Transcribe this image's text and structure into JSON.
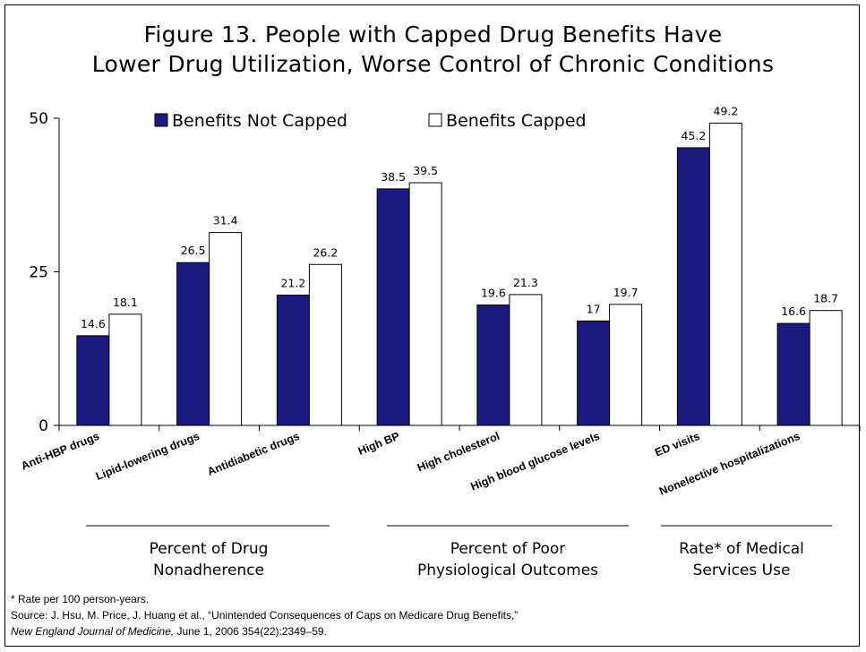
{
  "title_line1": "Figure 13. People with Capped Drug Benefits Have",
  "title_line2": "Lower Drug Utilization, Worse Control of Chronic Conditions",
  "chart_data": {
    "type": "bar",
    "categories": [
      "Anti-HBP drugs",
      "Lipid-lowering drugs",
      "Antidiabetic drugs",
      "High BP",
      "High cholesterol",
      "High blood glucose levels",
      "ED visits",
      "Nonelective hospitalizations"
    ],
    "series": [
      {
        "name": "Benefits Not Capped",
        "values": [
          14.6,
          26.5,
          21.2,
          38.5,
          19.6,
          17,
          45.2,
          16.6
        ],
        "color": "#1a1a80"
      },
      {
        "name": "Benefits Capped",
        "values": [
          18.1,
          31.4,
          26.2,
          39.5,
          21.3,
          19.7,
          49.2,
          18.7
        ],
        "color": "#ffffff"
      }
    ],
    "value_labels": [
      [
        "14.6",
        "26.5",
        "21.2",
        "38.5",
        "19.6",
        "17",
        "45.2",
        "16.6"
      ],
      [
        "18.1",
        "31.4",
        "26.2",
        "39.5",
        "21.3",
        "19.7",
        "49.2",
        "18.7"
      ]
    ],
    "ylim": [
      0,
      50
    ],
    "yticks": [
      "0",
      "25",
      "50"
    ],
    "grid": false,
    "legend_position": "top"
  },
  "group_labels": [
    {
      "line1": "Percent of Drug",
      "line2": "Nonadherence"
    },
    {
      "line1": "Percent of Poor",
      "line2": "Physiological Outcomes"
    },
    {
      "line1": "Rate* of Medical",
      "line2": "Services Use"
    }
  ],
  "footnotes": {
    "rate_note": "* Rate per 100 person-years.",
    "source": "Source: J. Hsu, M. Price, J. Huang et al., “Unintended Consequences of Caps on Medicare Drug Benefits,”",
    "journal": "New England Journal of Medicine,",
    "citation": " June 1, 2006 354(22):2349–59."
  }
}
